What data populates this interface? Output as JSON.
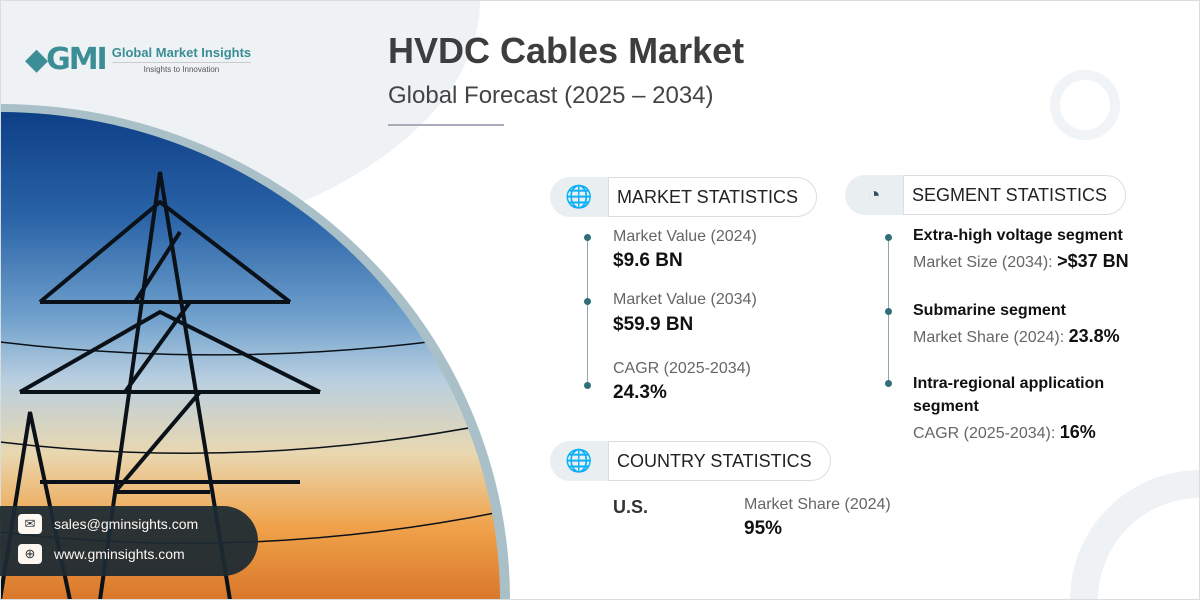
{
  "logo": {
    "name": "Global Market Insights",
    "tagline": "Insights to Innovation",
    "mark": "GMI"
  },
  "title": "HVDC Cables Market",
  "subtitle": "Global Forecast (2025 – 2034)",
  "market_statistics": {
    "header": "MARKET STATISTICS",
    "items": [
      {
        "label": "Market Value (2024)",
        "value": "$9.6 BN"
      },
      {
        "label": "Market Value (2034)",
        "value": "$59.9 BN"
      },
      {
        "label": "CAGR (2025-2034)",
        "value": "24.3%"
      }
    ]
  },
  "segment_statistics": {
    "header": "SEGMENT STATISTICS",
    "items": [
      {
        "name": "Extra-high voltage segment",
        "metric": "Market Size (2034):",
        "value": ">$37 BN"
      },
      {
        "name": "Submarine segment",
        "metric": "Market Share (2024):",
        "value": "23.8%"
      },
      {
        "name": "Intra-regional application segment",
        "name_line1": "Intra-regional application",
        "name_line2": "segment",
        "metric": "CAGR (2025-2034):",
        "value": "16%"
      }
    ]
  },
  "country_statistics": {
    "header": "COUNTRY STATISTICS",
    "country": "U.S.",
    "metric": "Market Share (2024)",
    "value": "95%"
  },
  "contact": {
    "email": "sales@gminsights.com",
    "website": "www.gminsights.com"
  },
  "colors": {
    "accent": "#3b8d96",
    "dark": "#1c2a33"
  }
}
